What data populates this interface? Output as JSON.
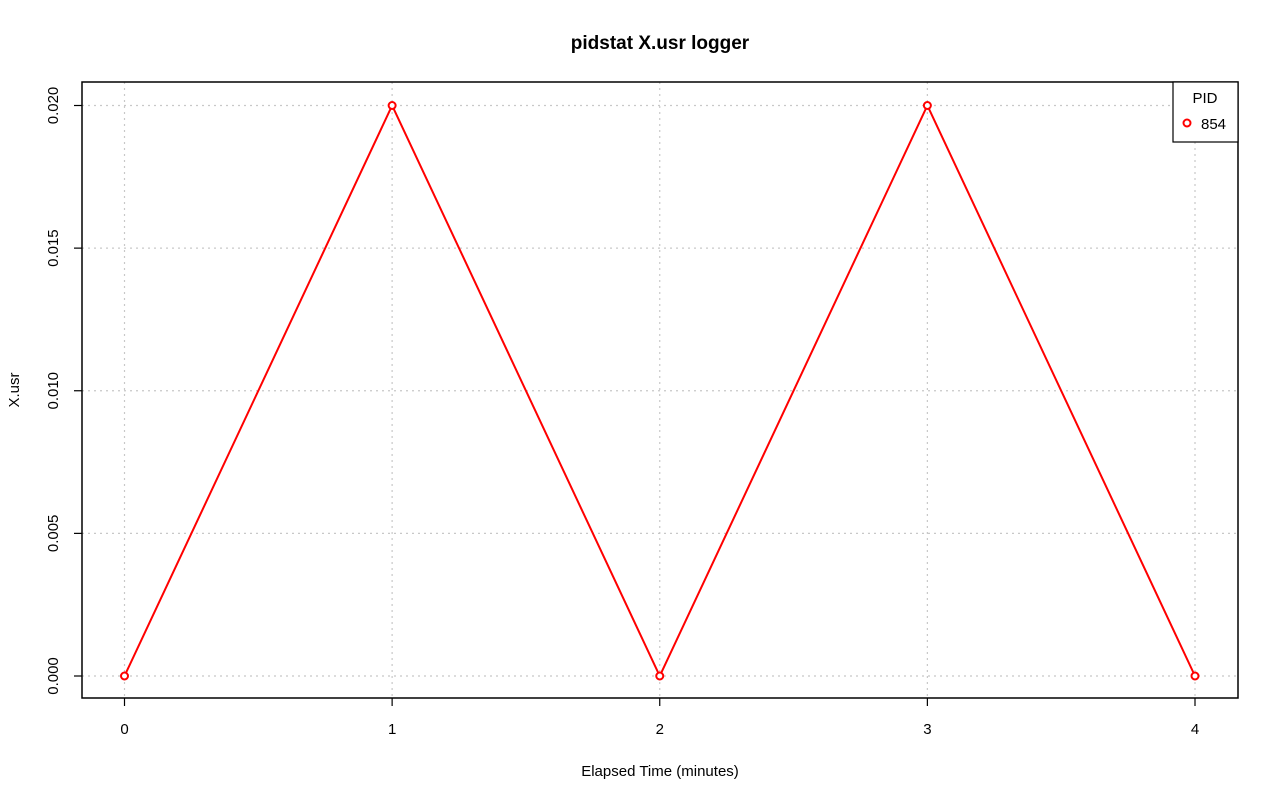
{
  "chart_data": {
    "type": "line",
    "title": "pidstat X.usr logger",
    "xlabel": "Elapsed Time (minutes)",
    "ylabel": "X.usr",
    "xlim": [
      0,
      4
    ],
    "ylim": [
      0,
      0.02
    ],
    "x_ticks": [
      0,
      1,
      2,
      3,
      4
    ],
    "x_tick_labels": [
      "0",
      "1",
      "2",
      "3",
      "4"
    ],
    "y_ticks": [
      0,
      0.005,
      0.01,
      0.015,
      0.02
    ],
    "y_tick_labels": [
      "0.000",
      "0.005",
      "0.010",
      "0.015",
      "0.020"
    ],
    "grid": true,
    "grid_style": "dotted",
    "legend": {
      "title": "PID",
      "placement": "top-right",
      "entries": [
        "854"
      ]
    },
    "series": [
      {
        "name": "854",
        "color": "#ff0000",
        "marker": "open-circle",
        "x": [
          0,
          1,
          2,
          3,
          4
        ],
        "y": [
          0,
          0.02,
          0,
          0.02,
          0
        ]
      }
    ]
  }
}
